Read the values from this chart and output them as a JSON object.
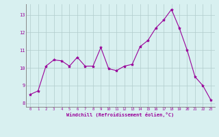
{
  "x": [
    0,
    1,
    2,
    3,
    4,
    5,
    6,
    7,
    8,
    9,
    10,
    11,
    12,
    13,
    14,
    15,
    16,
    17,
    18,
    19,
    20,
    21,
    22,
    23
  ],
  "y": [
    8.5,
    8.7,
    10.1,
    10.45,
    10.4,
    10.1,
    10.6,
    10.1,
    10.1,
    11.15,
    9.95,
    9.85,
    10.1,
    10.2,
    11.2,
    11.55,
    12.25,
    12.7,
    13.3,
    12.25,
    11.0,
    9.5,
    9.0,
    8.2
  ],
  "line_color": "#990099",
  "marker": "*",
  "marker_size": 3,
  "bg_color": "#d8f0f0",
  "grid_color": "#b0cccc",
  "xlabel": "Windchill (Refroidissement éolien,°C)",
  "xlabel_color": "#990099",
  "tick_color": "#990099",
  "axis_color": "#888888",
  "ylim": [
    7.8,
    13.6
  ],
  "xlim": [
    -0.5,
    23.5
  ],
  "yticks": [
    8,
    9,
    10,
    11,
    12,
    13
  ],
  "xticks": [
    0,
    1,
    2,
    3,
    4,
    5,
    6,
    7,
    8,
    9,
    10,
    11,
    12,
    13,
    14,
    15,
    16,
    17,
    18,
    19,
    20,
    21,
    22,
    23
  ]
}
